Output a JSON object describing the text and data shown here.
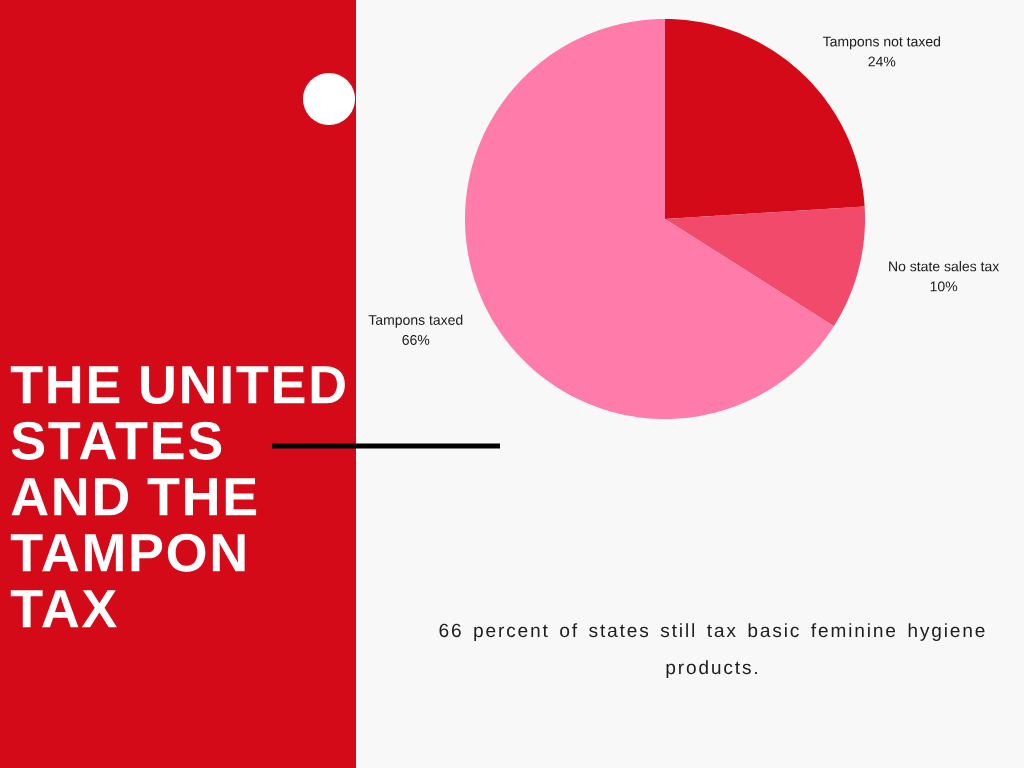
{
  "chart_data": {
    "type": "pie",
    "title": "THE UNITED STATES AND THE TAMPON TAX",
    "categories": [
      "Tampons not taxed",
      "No state sales tax",
      "Tampons taxed"
    ],
    "values": [
      24,
      10,
      66
    ],
    "colors": [
      "#d50a18",
      "#f24a6a",
      "#ff7ba9"
    ],
    "value_labels": [
      "24%",
      "10%",
      "66%"
    ],
    "annotations": [
      "66 percent of states still tax basic feminine hygiene products."
    ]
  }
}
